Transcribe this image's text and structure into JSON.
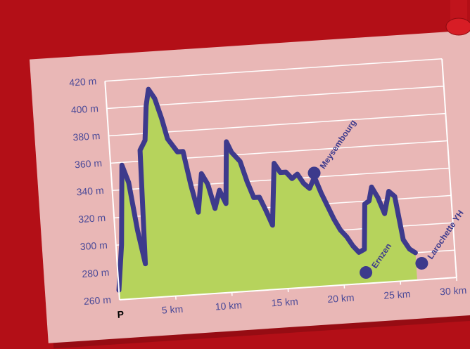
{
  "chart_data": {
    "type": "area",
    "start_label": "P",
    "x": [
      0,
      0.5,
      1,
      1.5,
      2,
      2.5,
      2.7,
      3.2,
      3.5,
      3.8,
      4.3,
      4.8,
      5.2,
      6,
      6.5,
      7,
      7.5,
      8,
      8.5,
      9,
      9.5,
      10,
      10.4,
      10.8,
      11.5,
      12,
      12.5,
      13,
      13.5,
      14,
      14.5,
      15,
      15.5,
      16,
      16.5,
      17,
      17.5,
      18,
      18.5,
      19,
      19.5,
      20,
      20.5,
      21,
      21.5,
      22,
      22.3,
      22.7,
      23,
      23.5,
      24,
      24.5,
      25,
      25.5,
      26,
      26.5
    ],
    "values": [
      267,
      300,
      358,
      345,
      310,
      285,
      368,
      375,
      400,
      412,
      405,
      390,
      375,
      365,
      365,
      340,
      320,
      348,
      340,
      322,
      335,
      325,
      370,
      362,
      355,
      340,
      328,
      328,
      318,
      307,
      352,
      345,
      345,
      340,
      343,
      336,
      332,
      340,
      328,
      318,
      308,
      300,
      295,
      288,
      283,
      285,
      318,
      320,
      330,
      322,
      310,
      326,
      322,
      290,
      283,
      280
    ],
    "color": "#3d3a8c",
    "fill_color": "#b6d35c",
    "points": [
      {
        "label": "Meysembourg",
        "x": 18,
        "y": 343
      },
      {
        "label": "Ernzen",
        "x": 22,
        "y": 268
      },
      {
        "label": "Larochette YH",
        "x": 27,
        "y": 272
      }
    ],
    "xlim": [
      0,
      30
    ],
    "ylim": [
      260,
      420
    ],
    "xticks": [
      {
        "value": 5,
        "label": "5 km"
      },
      {
        "value": 10,
        "label": "10 km"
      },
      {
        "value": 15,
        "label": "15 km"
      },
      {
        "value": 20,
        "label": "20 km"
      },
      {
        "value": 25,
        "label": "25 km"
      },
      {
        "value": 30,
        "label": "30 km"
      }
    ],
    "yticks": [
      {
        "value": 260,
        "label": "260 m"
      },
      {
        "value": 280,
        "label": "280 m"
      },
      {
        "value": 300,
        "label": "300 m"
      },
      {
        "value": 320,
        "label": "320 m"
      },
      {
        "value": 340,
        "label": "340 m"
      },
      {
        "value": 360,
        "label": "360 m"
      },
      {
        "value": 380,
        "label": "380 m"
      },
      {
        "value": 400,
        "label": "400 m"
      },
      {
        "value": 420,
        "label": "420 m"
      }
    ],
    "grid": true
  }
}
